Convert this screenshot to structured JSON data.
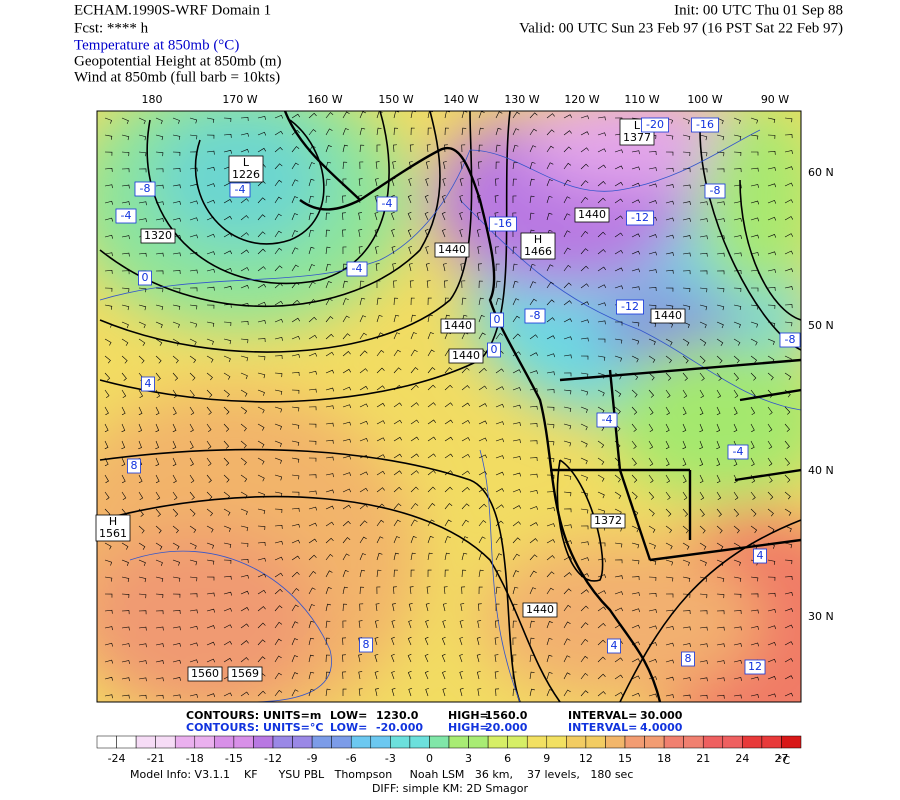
{
  "header": {
    "left": [
      "ECHAM.1990S-WRF Domain 1",
      "Fcst: **** h"
    ],
    "right": [
      "Init: 00 UTC Thu 01 Sep 88",
      "Valid: 00 UTC Sun 23 Feb 97 (16 PST Sat 22 Feb 97)"
    ],
    "fields": [
      "Temperature at 850mb (°C)",
      "Geopotential Height at 850mb (m)",
      "Wind at 850mb (full barb = 10kts)"
    ]
  },
  "map": {
    "lon_labels": [
      "180",
      "170 W",
      "160 W",
      "150 W",
      "140 W",
      "130 W",
      "120 W",
      "110 W",
      "100 W",
      "90 W"
    ],
    "lat_labels": [
      "60 N",
      "50 N",
      "40 N",
      "30 N"
    ],
    "height_labels": [
      "L\n1226",
      "1320",
      "1440",
      "1440",
      "1440",
      "H\n1466",
      "L\n1377",
      "1440",
      "1440",
      "1372",
      "H\n1561",
      "1560",
      "1569",
      "1440"
    ],
    "temp_labels": [
      "-8",
      "-4",
      "-4",
      "0",
      "-4",
      "-4",
      "-16",
      "-8",
      "-12",
      "-16",
      "-20",
      "-8",
      "-12",
      "-8",
      "4",
      "8",
      "-4",
      "-4",
      "4",
      "8",
      "4",
      "8",
      "12",
      "0",
      "0"
    ]
  },
  "footer": {
    "contours_height": [
      "CONTOURS:",
      "UNITS=m",
      "LOW=",
      "1230.0",
      "HIGH=",
      "1560.0",
      "INTERVAL=",
      "30.000"
    ],
    "contours_temp": [
      "CONTOURS:",
      "UNITS=°C",
      "LOW=",
      "-20.000",
      "HIGH=",
      "20.000",
      "INTERVAL=",
      "4.0000"
    ],
    "colorbar_labels": [
      "-24",
      "-21",
      "-18",
      "-15",
      "-12",
      "-9",
      "-6",
      "-3",
      "0",
      "3",
      "6",
      "9",
      "12",
      "15",
      "18",
      "21",
      "24",
      "27"
    ],
    "colorbar_unit": "°C",
    "model_info": "Model Info: V3.1.1    KF      YSU PBL   Thompson     Noah LSM   36 km,    37 levels,   180 sec",
    "diff_info": "DIFF: simple KM: 2D Smagor"
  }
}
